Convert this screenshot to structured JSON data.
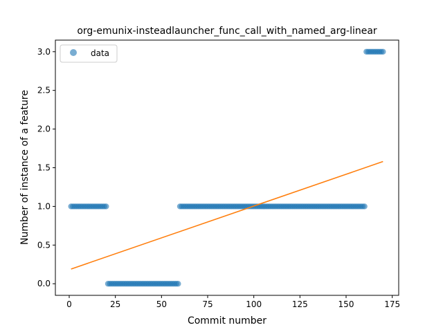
{
  "chart_data": {
    "type": "scatter",
    "title": "org-emunix-insteadlauncher_func_call_with_named_arg-linear",
    "xlabel": "Commit number",
    "ylabel": "Number of instance of a feature",
    "xlim": [
      -7.5,
      178.5
    ],
    "ylim": [
      -0.15,
      3.15
    ],
    "xticks": [
      0,
      25,
      50,
      75,
      100,
      125,
      150,
      175
    ],
    "yticks": [
      0.0,
      0.5,
      1.0,
      1.5,
      2.0,
      2.5,
      3.0
    ],
    "xtick_labels": [
      "0",
      "25",
      "50",
      "75",
      "100",
      "125",
      "150",
      "175"
    ],
    "ytick_labels": [
      "0.0",
      "0.5",
      "1.0",
      "1.5",
      "2.0",
      "2.5",
      "3.0"
    ],
    "grid": false,
    "legend": {
      "position": "upper-left",
      "entries": [
        "data"
      ]
    },
    "colors": {
      "data": "#1f77b4",
      "fit": "#ff7f0e"
    },
    "segments": [
      {
        "x_start": 1,
        "x_end": 20,
        "y": 1
      },
      {
        "x_start": 21,
        "x_end": 59,
        "y": 0
      },
      {
        "x_start": 60,
        "x_end": 160,
        "y": 1
      },
      {
        "x_start": 161,
        "x_end": 170,
        "y": 3
      }
    ],
    "fit_line": {
      "x": [
        1,
        170
      ],
      "y": [
        0.19,
        1.58
      ]
    }
  }
}
